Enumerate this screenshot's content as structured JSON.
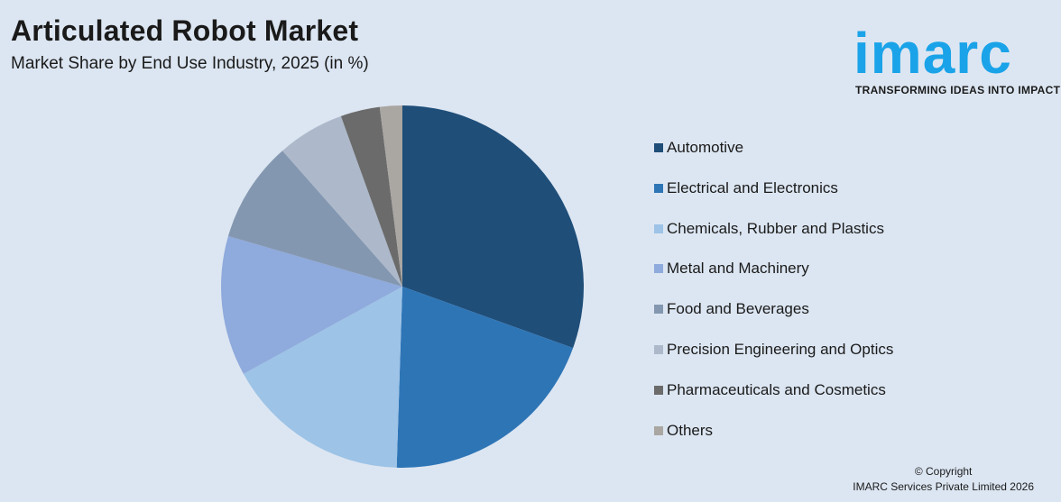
{
  "title": "Articulated Robot Market",
  "subtitle": "Market Share by End Use Industry, 2025 (in %)",
  "logo": {
    "word": "imarc",
    "tagline": "TRANSFORMING IDEAS INTO IMPACT",
    "color": "#1aa3e8"
  },
  "copyright": {
    "line1": "© Copyright",
    "line2": "IMARC Services Private Limited 2026"
  },
  "chart_data": {
    "type": "pie",
    "title": "Market Share by End Use Industry, 2025 (in %)",
    "start_angle": "12 o'clock",
    "direction": "clockwise",
    "legend_position": "right",
    "slices": [
      {
        "label": "Automotive",
        "value": 30.5,
        "color": "#1f4e79"
      },
      {
        "label": "Electrical and Electronics",
        "value": 20.0,
        "color": "#2e75b6"
      },
      {
        "label": "Chemicals, Rubber and Plastics",
        "value": 16.5,
        "color": "#9dc3e6"
      },
      {
        "label": "Metal and Machinery",
        "value": 12.5,
        "color": "#8faadc"
      },
      {
        "label": "Food and Beverages",
        "value": 9.0,
        "color": "#8497b0"
      },
      {
        "label": "Precision Engineering and Optics",
        "value": 6.0,
        "color": "#adb9ca"
      },
      {
        "label": "Pharmaceuticals and Cosmetics",
        "value": 3.5,
        "color": "#6b6b6b"
      },
      {
        "label": "Others",
        "value": 2.0,
        "color": "#aaa6a2"
      }
    ]
  }
}
